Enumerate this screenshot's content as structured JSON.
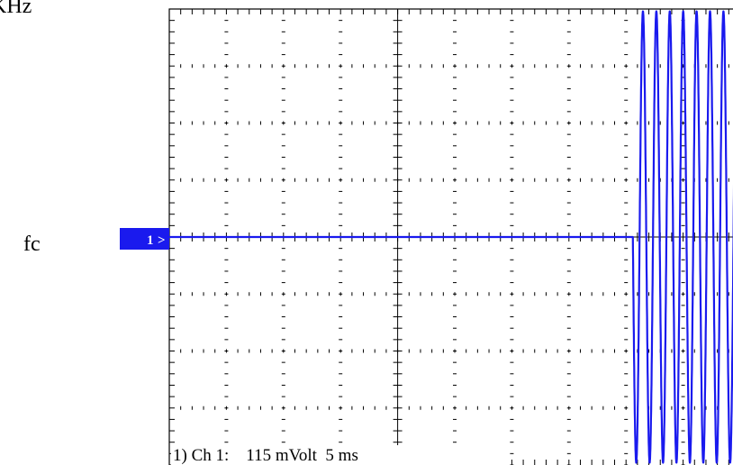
{
  "labels": {
    "top_left": "KHz",
    "frequency_marker": "fc",
    "channel_marker": "1",
    "status_line": "1) Ch 1:    115 mVolt  5 ms"
  },
  "colors": {
    "trace": "#1a1aee",
    "marker_bg": "#1a1aee",
    "grid": "#000000",
    "background": "#ffffff"
  },
  "chart_data": {
    "type": "line",
    "title": "",
    "xlabel": "",
    "ylabel": "",
    "grid": true,
    "divisions": {
      "x": 10,
      "y": 8
    },
    "xlim": [
      0,
      50
    ],
    "ylim": [
      -460,
      460
    ],
    "x_unit": "ms",
    "y_unit": "mVolt",
    "volts_per_div": 115,
    "time_per_div": 5,
    "series": [
      {
        "description": "flat baseline then burst of oscillations",
        "flat_until": 40.6,
        "flat_value": 0,
        "burst_start": 40.6,
        "burst_end": 50,
        "burst_cycles": 8,
        "burst_amplitude": 460
      }
    ]
  }
}
